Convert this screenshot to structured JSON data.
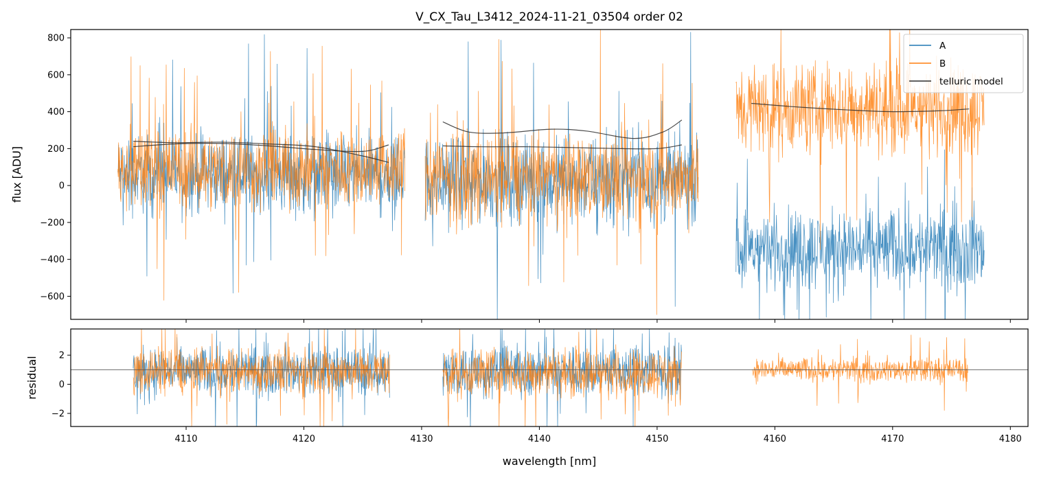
{
  "chart_data": [
    {
      "type": "line",
      "panel": "top",
      "title": "V_CX_Tau_L3412_2024-11-21_03504  order 02",
      "xlabel": "",
      "ylabel": "flux [ADU]",
      "xlim": [
        4100.2,
        4181.5
      ],
      "ylim": [
        -725,
        845
      ],
      "yticks": [
        -600,
        -400,
        -200,
        0,
        200,
        400,
        600,
        800
      ],
      "xticks": [
        4110,
        4120,
        4130,
        4140,
        4150,
        4160,
        4170,
        4180
      ],
      "legend": {
        "placement": "top-right",
        "entries": [
          "A",
          "B",
          "telluric model"
        ]
      },
      "colors": {
        "A": "#1f77b4",
        "B": "#ff7f0e",
        "model": "#2b2b2b"
      },
      "segments": [
        {
          "name": "segment-1",
          "x_range": [
            4104.2,
            4128.6
          ],
          "A_band": {
            "center": 60,
            "spread": 330
          },
          "B_band": {
            "center": 90,
            "spread": 330
          }
        },
        {
          "name": "segment-2",
          "x_range": [
            4130.3,
            4153.5
          ],
          "A_band": {
            "center": 30,
            "spread": 360
          },
          "B_band": {
            "center": 40,
            "spread": 370
          }
        },
        {
          "name": "segment-3",
          "x_range": [
            4156.7,
            4177.8
          ],
          "A_band": {
            "center": -340,
            "spread": 330
          },
          "B_band": {
            "center": 420,
            "spread": 380
          }
        }
      ],
      "series": [
        {
          "name": "telluric model (A, seg 1)",
          "x": [
            4105.5,
            4109,
            4113,
            4117,
            4121,
            4125,
            4127.2
          ],
          "values": [
            210,
            225,
            228,
            215,
            195,
            185,
            220
          ]
        },
        {
          "name": "telluric model (B, seg 1)",
          "x": [
            4105.5,
            4109,
            4113,
            4117,
            4121,
            4125,
            4127.2
          ],
          "values": [
            240,
            232,
            235,
            225,
            210,
            160,
            125
          ]
        },
        {
          "name": "telluric model (A, seg 2)",
          "x": [
            4131.8,
            4135,
            4139,
            4143,
            4147,
            4150,
            4152.1
          ],
          "values": [
            215,
            210,
            210,
            205,
            200,
            200,
            220
          ]
        },
        {
          "name": "telluric model (B, seg 2)",
          "x": [
            4131.8,
            4134,
            4137,
            4141,
            4144,
            4148,
            4150.5,
            4152.1
          ],
          "values": [
            345,
            290,
            285,
            305,
            295,
            255,
            290,
            355
          ]
        },
        {
          "name": "telluric model (seg 3)",
          "x": [
            4158,
            4162,
            4166,
            4170,
            4174,
            4176.5
          ],
          "values": [
            445,
            425,
            410,
            400,
            405,
            415
          ]
        }
      ]
    },
    {
      "type": "line",
      "panel": "bottom",
      "xlabel": "wavelength [nm]",
      "ylabel": "residual",
      "xlim": [
        4100.2,
        4181.5
      ],
      "ylim": [
        -2.9,
        3.8
      ],
      "yticks": [
        -2,
        0,
        2
      ],
      "xticks": [
        4110,
        4120,
        4130,
        4140,
        4150,
        4160,
        4170,
        4180
      ],
      "reference_line": 1,
      "segments": [
        {
          "name": "resid-segment-1",
          "x_range": [
            4105.5,
            4127.3
          ],
          "A_band": {
            "center": 0.9,
            "spread": 2.6
          },
          "B_band": {
            "center": 0.9,
            "spread": 2.4
          }
        },
        {
          "name": "resid-segment-2",
          "x_range": [
            4131.8,
            4152.1
          ],
          "A_band": {
            "center": 0.9,
            "spread": 2.7
          },
          "B_band": {
            "center": 0.8,
            "spread": 2.6
          }
        },
        {
          "name": "resid-segment-3",
          "x_range": [
            4158.1,
            4176.4
          ],
          "A_band": null,
          "B_band": {
            "center": 1.0,
            "spread": 1.3
          }
        }
      ]
    }
  ]
}
